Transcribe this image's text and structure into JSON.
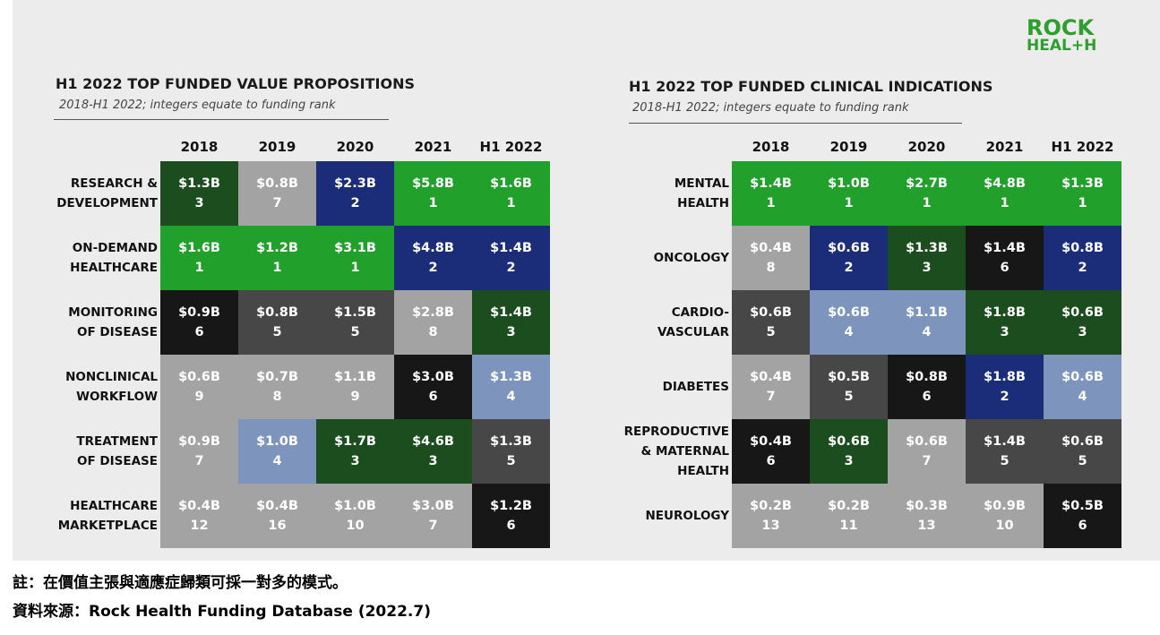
{
  "logo": {
    "line1": "ROCK",
    "line2": "HEAL+H"
  },
  "colors": {
    "green": "#21a02b",
    "navy": "#1b2c78",
    "black": "#171717",
    "dark_gray": "#474747",
    "dark_green": "#1b4d1e",
    "light_gray": "#a3a3a3",
    "light_blue": "#7d95bd"
  },
  "chart_data": [
    {
      "type": "table",
      "title": "H1 2022 TOP FUNDED VALUE PROPOSITIONS",
      "subtitle": "2018-H1 2022; integers equate to funding rank",
      "columns": [
        "2018",
        "2019",
        "2020",
        "2021",
        "H1 2022"
      ],
      "rows": [
        {
          "label": [
            "RESEARCH &",
            "DEVELOPMENT"
          ],
          "cells": [
            {
              "amount": "$1.3B",
              "rank": "3",
              "color": "#1b4d1e"
            },
            {
              "amount": "$0.8B",
              "rank": "7",
              "color": "#a3a3a3"
            },
            {
              "amount": "$2.3B",
              "rank": "2",
              "color": "#1b2c78"
            },
            {
              "amount": "$5.8B",
              "rank": "1",
              "color": "#21a02b"
            },
            {
              "amount": "$1.6B",
              "rank": "1",
              "color": "#21a02b"
            }
          ]
        },
        {
          "label": [
            "ON-DEMAND",
            "HEALTHCARE"
          ],
          "cells": [
            {
              "amount": "$1.6B",
              "rank": "1",
              "color": "#21a02b"
            },
            {
              "amount": "$1.2B",
              "rank": "1",
              "color": "#21a02b"
            },
            {
              "amount": "$3.1B",
              "rank": "1",
              "color": "#21a02b"
            },
            {
              "amount": "$4.8B",
              "rank": "2",
              "color": "#1b2c78"
            },
            {
              "amount": "$1.4B",
              "rank": "2",
              "color": "#1b2c78"
            }
          ]
        },
        {
          "label": [
            "MONITORING",
            "OF DISEASE"
          ],
          "cells": [
            {
              "amount": "$0.9B",
              "rank": "6",
              "color": "#171717"
            },
            {
              "amount": "$0.8B",
              "rank": "5",
              "color": "#474747"
            },
            {
              "amount": "$1.5B",
              "rank": "5",
              "color": "#474747"
            },
            {
              "amount": "$2.8B",
              "rank": "8",
              "color": "#a3a3a3"
            },
            {
              "amount": "$1.4B",
              "rank": "3",
              "color": "#1b4d1e"
            }
          ]
        },
        {
          "label": [
            "NONCLINICAL",
            "WORKFLOW"
          ],
          "cells": [
            {
              "amount": "$0.6B",
              "rank": "9",
              "color": "#a3a3a3"
            },
            {
              "amount": "$0.7B",
              "rank": "8",
              "color": "#a3a3a3"
            },
            {
              "amount": "$1.1B",
              "rank": "9",
              "color": "#a3a3a3"
            },
            {
              "amount": "$3.0B",
              "rank": "6",
              "color": "#171717"
            },
            {
              "amount": "$1.3B",
              "rank": "4",
              "color": "#7d95bd"
            }
          ]
        },
        {
          "label": [
            "TREATMENT",
            "OF DISEASE"
          ],
          "cells": [
            {
              "amount": "$0.9B",
              "rank": "7",
              "color": "#a3a3a3"
            },
            {
              "amount": "$1.0B",
              "rank": "4",
              "color": "#7d95bd"
            },
            {
              "amount": "$1.7B",
              "rank": "3",
              "color": "#1b4d1e"
            },
            {
              "amount": "$4.6B",
              "rank": "3",
              "color": "#1b4d1e"
            },
            {
              "amount": "$1.3B",
              "rank": "5",
              "color": "#474747"
            }
          ]
        },
        {
          "label": [
            "HEALTHCARE",
            "MARKETPLACE"
          ],
          "cells": [
            {
              "amount": "$0.4B",
              "rank": "12",
              "color": "#a3a3a3"
            },
            {
              "amount": "$0.4B",
              "rank": "16",
              "color": "#a3a3a3"
            },
            {
              "amount": "$1.0B",
              "rank": "10",
              "color": "#a3a3a3"
            },
            {
              "amount": "$3.0B",
              "rank": "7",
              "color": "#a3a3a3"
            },
            {
              "amount": "$1.2B",
              "rank": "6",
              "color": "#171717"
            }
          ]
        }
      ]
    },
    {
      "type": "table",
      "title": "H1 2022 TOP FUNDED CLINICAL INDICATIONS",
      "subtitle": "2018-H1 2022; integers equate to funding rank",
      "columns": [
        "2018",
        "2019",
        "2020",
        "2021",
        "H1 2022"
      ],
      "rows": [
        {
          "label": [
            "MENTAL",
            "HEALTH"
          ],
          "cells": [
            {
              "amount": "$1.4B",
              "rank": "1",
              "color": "#21a02b"
            },
            {
              "amount": "$1.0B",
              "rank": "1",
              "color": "#21a02b"
            },
            {
              "amount": "$2.7B",
              "rank": "1",
              "color": "#21a02b"
            },
            {
              "amount": "$4.8B",
              "rank": "1",
              "color": "#21a02b"
            },
            {
              "amount": "$1.3B",
              "rank": "1",
              "color": "#21a02b"
            }
          ]
        },
        {
          "label": [
            "ONCOLOGY"
          ],
          "cells": [
            {
              "amount": "$0.4B",
              "rank": "8",
              "color": "#a3a3a3"
            },
            {
              "amount": "$0.6B",
              "rank": "2",
              "color": "#1b2c78"
            },
            {
              "amount": "$1.3B",
              "rank": "3",
              "color": "#1b4d1e"
            },
            {
              "amount": "$1.4B",
              "rank": "6",
              "color": "#171717"
            },
            {
              "amount": "$0.8B",
              "rank": "2",
              "color": "#1b2c78"
            }
          ]
        },
        {
          "label": [
            "CARDIO-",
            "VASCULAR"
          ],
          "cells": [
            {
              "amount": "$0.6B",
              "rank": "5",
              "color": "#474747"
            },
            {
              "amount": "$0.6B",
              "rank": "4",
              "color": "#7d95bd"
            },
            {
              "amount": "$1.1B",
              "rank": "4",
              "color": "#7d95bd"
            },
            {
              "amount": "$1.8B",
              "rank": "3",
              "color": "#1b4d1e"
            },
            {
              "amount": "$0.6B",
              "rank": "3",
              "color": "#1b4d1e"
            }
          ]
        },
        {
          "label": [
            "DIABETES"
          ],
          "cells": [
            {
              "amount": "$0.4B",
              "rank": "7",
              "color": "#a3a3a3"
            },
            {
              "amount": "$0.5B",
              "rank": "5",
              "color": "#474747"
            },
            {
              "amount": "$0.8B",
              "rank": "6",
              "color": "#171717"
            },
            {
              "amount": "$1.8B",
              "rank": "2",
              "color": "#1b2c78"
            },
            {
              "amount": "$0.6B",
              "rank": "4",
              "color": "#7d95bd"
            }
          ]
        },
        {
          "label": [
            "REPRODUCTIVE",
            "& MATERNAL",
            "HEALTH"
          ],
          "cells": [
            {
              "amount": "$0.4B",
              "rank": "6",
              "color": "#171717"
            },
            {
              "amount": "$0.6B",
              "rank": "3",
              "color": "#1b4d1e"
            },
            {
              "amount": "$0.6B",
              "rank": "7",
              "color": "#a3a3a3"
            },
            {
              "amount": "$1.4B",
              "rank": "5",
              "color": "#474747"
            },
            {
              "amount": "$0.6B",
              "rank": "5",
              "color": "#474747"
            }
          ]
        },
        {
          "label": [
            "NEUROLOGY"
          ],
          "cells": [
            {
              "amount": "$0.2B",
              "rank": "13",
              "color": "#a3a3a3"
            },
            {
              "amount": "$0.2B",
              "rank": "11",
              "color": "#a3a3a3"
            },
            {
              "amount": "$0.3B",
              "rank": "13",
              "color": "#a3a3a3"
            },
            {
              "amount": "$0.9B",
              "rank": "10",
              "color": "#a3a3a3"
            },
            {
              "amount": "$0.5B",
              "rank": "6",
              "color": "#171717"
            }
          ]
        }
      ]
    }
  ],
  "footer": {
    "note": "註：在價值主張與適應症歸類可採一對多的模式。",
    "source": "資料來源：Rock Health Funding Database (2022.7)"
  }
}
